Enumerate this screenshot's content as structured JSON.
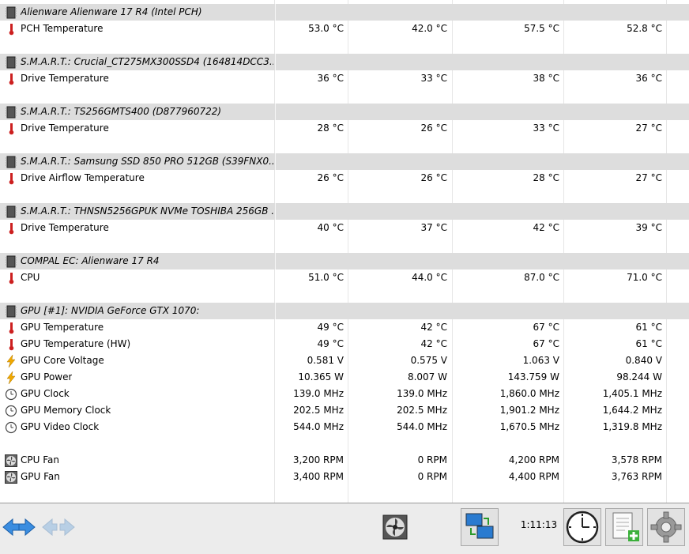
{
  "sections": [
    {
      "header": "Alienware Alienware 17 R4 (Intel PCH)",
      "icon": "chip-icon",
      "rows": [
        {
          "label": "PCH Temperature",
          "icon": "thermometer-icon",
          "values": [
            "53.0 °C",
            "42.0 °C",
            "57.5 °C",
            "52.8 °C"
          ]
        }
      ]
    },
    {
      "header": "S.M.A.R.T.: Crucial_CT275MX300SSD4 (164814DCC3...",
      "icon": "chip-icon",
      "rows": [
        {
          "label": "Drive Temperature",
          "icon": "thermometer-icon",
          "values": [
            "36 °C",
            "33 °C",
            "38 °C",
            "36 °C"
          ]
        }
      ]
    },
    {
      "header": "S.M.A.R.T.: TS256GMTS400 (D877960722)",
      "icon": "chip-icon",
      "rows": [
        {
          "label": "Drive Temperature",
          "icon": "thermometer-icon",
          "values": [
            "28 °C",
            "26 °C",
            "33 °C",
            "27 °C"
          ]
        }
      ]
    },
    {
      "header": "S.M.A.R.T.: Samsung SSD 850 PRO 512GB (S39FNX0...",
      "icon": "chip-icon",
      "rows": [
        {
          "label": "Drive Airflow Temperature",
          "icon": "thermometer-icon",
          "values": [
            "26 °C",
            "26 °C",
            "28 °C",
            "27 °C"
          ]
        }
      ]
    },
    {
      "header": "S.M.A.R.T.: THNSN5256GPUK NVMe TOSHIBA 256GB ...",
      "icon": "chip-icon",
      "rows": [
        {
          "label": "Drive Temperature",
          "icon": "thermometer-icon",
          "values": [
            "40 °C",
            "37 °C",
            "42 °C",
            "39 °C"
          ]
        }
      ]
    },
    {
      "header": "COMPAL EC: Alienware 17 R4",
      "icon": "chip-icon",
      "rows": [
        {
          "label": "CPU",
          "icon": "thermometer-icon",
          "values": [
            "51.0 °C",
            "44.0 °C",
            "87.0 °C",
            "71.0 °C"
          ]
        }
      ]
    },
    {
      "header": "GPU [#1]: NVIDIA GeForce GTX 1070:",
      "icon": "chip-icon",
      "rows": [
        {
          "label": "GPU Temperature",
          "icon": "thermometer-icon",
          "values": [
            "49 °C",
            "42 °C",
            "67 °C",
            "61 °C"
          ]
        },
        {
          "label": "GPU Temperature (HW)",
          "icon": "thermometer-icon",
          "values": [
            "49 °C",
            "42 °C",
            "67 °C",
            "61 °C"
          ]
        },
        {
          "label": "GPU Core Voltage",
          "icon": "lightning-icon",
          "values": [
            "0.581 V",
            "0.575 V",
            "1.063 V",
            "0.840 V"
          ]
        },
        {
          "label": "GPU Power",
          "icon": "lightning-icon",
          "values": [
            "10.365 W",
            "8.007 W",
            "143.759 W",
            "98.244 W"
          ]
        },
        {
          "label": "GPU Clock",
          "icon": "clock-icon",
          "values": [
            "139.0 MHz",
            "139.0 MHz",
            "1,860.0 MHz",
            "1,405.1 MHz"
          ]
        },
        {
          "label": "GPU Memory Clock",
          "icon": "clock-icon",
          "values": [
            "202.5 MHz",
            "202.5 MHz",
            "1,901.2 MHz",
            "1,644.2 MHz"
          ]
        },
        {
          "label": "GPU Video Clock",
          "icon": "clock-icon",
          "values": [
            "544.0 MHz",
            "544.0 MHz",
            "1,670.5 MHz",
            "1,319.8 MHz"
          ]
        }
      ]
    },
    {
      "header": null,
      "icon": null,
      "rows": [
        {
          "label": "CPU Fan",
          "icon": "fan-icon",
          "values": [
            "3,200 RPM",
            "0 RPM",
            "4,200 RPM",
            "3,578 RPM"
          ]
        },
        {
          "label": "GPU Fan",
          "icon": "fan-icon",
          "values": [
            "3,400 RPM",
            "0 RPM",
            "4,400 RPM",
            "3,763 RPM"
          ]
        }
      ]
    }
  ],
  "toolbar": {
    "time": "1:11:13",
    "buttons": [
      "nav-arrows-icon",
      "nav-arrows-disabled-icon",
      "fan-control-icon",
      "network-monitor-icon",
      "clock-icon",
      "add-report-icon",
      "settings-gear-icon"
    ]
  }
}
